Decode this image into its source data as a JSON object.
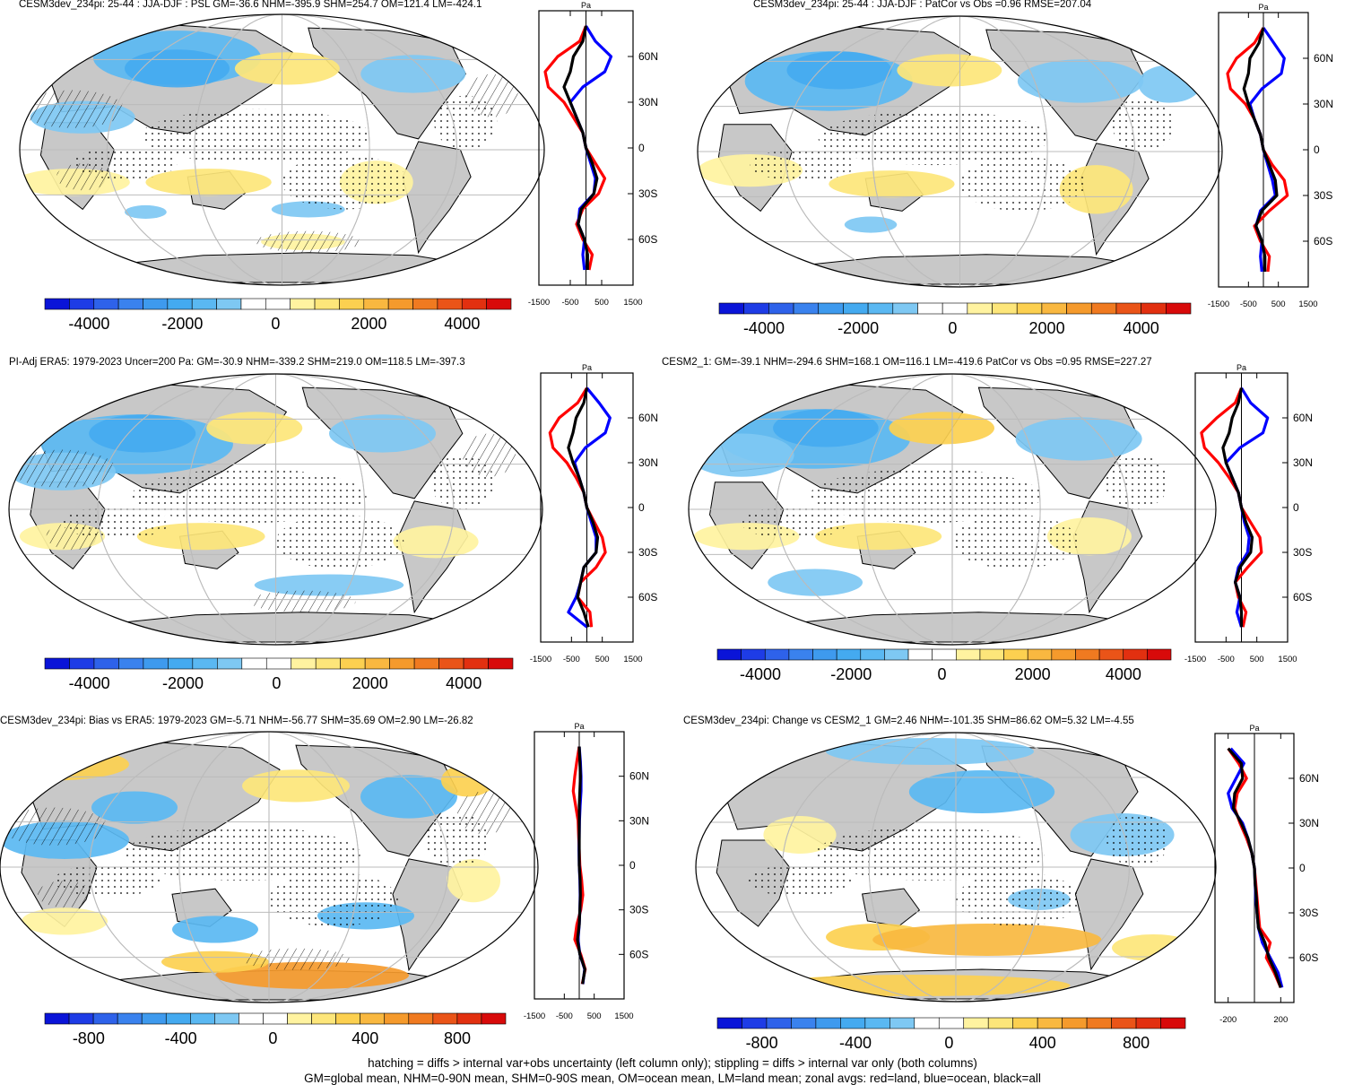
{
  "colors": {
    "land": "#c8c8c8",
    "blue_scale": [
      "#0a14d8",
      "#1e3ce6",
      "#2e62ea",
      "#3a82ee",
      "#3e9aee",
      "#44aaf0",
      "#5ab8f2",
      "#7ec8f3",
      "#ffffff"
    ],
    "warm_scale": [
      "#ffffff",
      "#fff3a0",
      "#fde67a",
      "#fcd050",
      "#f9b840",
      "#f59a2c",
      "#f07a20",
      "#ea5418",
      "#e23010",
      "#d80a0a"
    ],
    "land_line": "#ff0000",
    "ocean_line": "#0000ff",
    "all_line": "#000000"
  },
  "footer": {
    "line1": "hatching = diffs > internal var+obs uncertainty (left column only); stippling = diffs > internal var only (both columns)",
    "line2": "GM=global mean, NHM=0-90N mean, SHM=0-90S mean, OM=ocean mean, LM=land mean; zonal avgs: red=land, blue=ocean, black=all"
  },
  "chart_data": [
    {
      "id": "p1",
      "type": "map",
      "title": "CESM3dev_234pi: 25-44 : JJA-DJF : PSL GM=-36.6 NHM=-395.9 SHM=254.7 OM=121.4 LM=-424.1",
      "colorbar_ticks": [
        "-4000",
        "-2000",
        "0",
        "2000",
        "4000"
      ],
      "zonal": {
        "unit": "Pa",
        "xticks": [
          "-1500",
          "-500",
          "500",
          "1500"
        ],
        "xlim": [
          -1500,
          1500
        ],
        "lat_labels": [
          "60N",
          "30N",
          "0",
          "30S",
          "60S"
        ],
        "lat": [
          80,
          70,
          60,
          50,
          40,
          30,
          20,
          10,
          0,
          -10,
          -20,
          -30,
          -40,
          -50,
          -60,
          -70,
          -80
        ],
        "land": [
          0,
          -200,
          -900,
          -1300,
          -1200,
          -700,
          -400,
          -100,
          0,
          300,
          600,
          400,
          -100,
          -300,
          -100,
          200,
          100
        ],
        "ocean": [
          0,
          300,
          800,
          600,
          -100,
          -500,
          -300,
          -100,
          0,
          150,
          300,
          250,
          -200,
          -250,
          -50,
          -100,
          -50
        ],
        "all": [
          0,
          -100,
          -400,
          -500,
          -700,
          -500,
          -300,
          -100,
          0,
          200,
          350,
          250,
          -150,
          -250,
          -50,
          50,
          50
        ]
      }
    },
    {
      "id": "p2",
      "type": "map",
      "title": "CESM3dev_234pi: 25-44 : JJA-DJF : PatCor vs Obs =0.96 RMSE=207.04",
      "colorbar_ticks": [
        "-4000",
        "-2000",
        "0",
        "2000",
        "4000"
      ],
      "zonal": {
        "unit": "Pa",
        "xticks": [
          "-1500",
          "-500",
          "500",
          "1500"
        ],
        "xlim": [
          -1500,
          1500
        ],
        "lat_labels": [
          "60N",
          "30N",
          "0",
          "30S",
          "60S"
        ],
        "lat": [
          80,
          70,
          60,
          50,
          40,
          30,
          20,
          10,
          0,
          -10,
          -20,
          -30,
          -40,
          -50,
          -60,
          -70,
          -80
        ],
        "land": [
          0,
          -300,
          -900,
          -1200,
          -1100,
          -600,
          -300,
          -100,
          0,
          300,
          700,
          800,
          200,
          -300,
          -100,
          200,
          150
        ],
        "ocean": [
          0,
          350,
          700,
          600,
          -50,
          -450,
          -300,
          -100,
          0,
          150,
          300,
          400,
          -100,
          -250,
          -50,
          -100,
          -50
        ],
        "all": [
          0,
          -150,
          -450,
          -500,
          -650,
          -500,
          -300,
          -100,
          0,
          200,
          400,
          450,
          -50,
          -250,
          -50,
          50,
          50
        ]
      }
    },
    {
      "id": "p3",
      "type": "map",
      "title": "PI-Adj ERA5: 1979-2023 Uncer=200 Pa: GM=-30.9 NHM=-339.2 SHM=219.0 OM=118.5 LM=-397.3",
      "colorbar_ticks": [
        "-4000",
        "-2000",
        "0",
        "2000",
        "4000"
      ],
      "zonal": {
        "unit": "Pa",
        "xticks": [
          "-1500",
          "-500",
          "500",
          "1500"
        ],
        "xlim": [
          -1500,
          1500
        ],
        "lat_labels": [
          "60N",
          "30N",
          "0",
          "30S",
          "60S"
        ],
        "lat": [
          80,
          70,
          60,
          50,
          40,
          30,
          20,
          10,
          0,
          -10,
          -20,
          -30,
          -40,
          -50,
          -60,
          -70,
          -80
        ],
        "land": [
          0,
          -300,
          -900,
          -1200,
          -1100,
          -650,
          -350,
          -100,
          0,
          250,
          500,
          600,
          300,
          -200,
          -300,
          100,
          150
        ],
        "ocean": [
          0,
          400,
          750,
          600,
          -50,
          -400,
          -250,
          -100,
          0,
          150,
          300,
          300,
          -100,
          -200,
          -350,
          -600,
          0
        ],
        "all": [
          0,
          -100,
          -350,
          -450,
          -600,
          -450,
          -250,
          -100,
          0,
          200,
          350,
          300,
          -100,
          -200,
          -300,
          -100,
          50
        ]
      }
    },
    {
      "id": "p4",
      "type": "map",
      "title": "CESM2_1: GM=-39.1 NHM=-294.6 SHM=168.1 OM=116.1 LM=-419.6 PatCor vs Obs =0.95 RMSE=227.27",
      "colorbar_ticks": [
        "-4000",
        "-2000",
        "0",
        "2000",
        "4000"
      ],
      "zonal": {
        "unit": "Pa",
        "xticks": [
          "-1500",
          "-500",
          "500",
          "1500"
        ],
        "xlim": [
          -1500,
          1500
        ],
        "lat_labels": [
          "60N",
          "30N",
          "0",
          "30S",
          "60S"
        ],
        "lat": [
          80,
          70,
          60,
          50,
          40,
          30,
          20,
          10,
          0,
          -10,
          -20,
          -30,
          -40,
          -50,
          -60,
          -70,
          -80
        ],
        "land": [
          0,
          -200,
          -800,
          -1300,
          -1200,
          -750,
          -400,
          -100,
          0,
          300,
          600,
          650,
          200,
          -200,
          -100,
          150,
          50
        ],
        "ocean": [
          0,
          300,
          850,
          700,
          -50,
          -500,
          -300,
          -100,
          0,
          100,
          250,
          200,
          -100,
          -200,
          -50,
          -150,
          0
        ],
        "all": [
          0,
          -100,
          -300,
          -400,
          -600,
          -500,
          -300,
          -100,
          0,
          150,
          350,
          300,
          -50,
          -200,
          -50,
          0,
          0
        ]
      }
    },
    {
      "id": "p5",
      "type": "map",
      "title": "CESM3dev_234pi: Bias vs ERA5: 1979-2023 GM=-5.71 NHM=-56.77 SHM=35.69 OM=2.90 LM=-26.82",
      "colorbar_ticks": [
        "-800",
        "-400",
        "0",
        "400",
        "800"
      ],
      "zonal": {
        "unit": "Pa",
        "xticks": [
          "-1500",
          "-500",
          "500",
          "1500"
        ],
        "xlim": [
          -1500,
          1500
        ],
        "lat_labels": [
          "60N",
          "30N",
          "0",
          "30S",
          "60S"
        ],
        "lat": [
          80,
          70,
          60,
          50,
          40,
          30,
          20,
          10,
          0,
          -10,
          -20,
          -30,
          -40,
          -50,
          -60,
          -70,
          -80
        ],
        "land": [
          0,
          -80,
          -150,
          -200,
          -120,
          -40,
          -20,
          0,
          20,
          80,
          120,
          50,
          -80,
          -150,
          50,
          200,
          100
        ],
        "ocean": [
          0,
          40,
          60,
          60,
          30,
          10,
          0,
          -10,
          0,
          20,
          30,
          20,
          0,
          -40,
          20,
          180,
          120
        ],
        "all": [
          0,
          20,
          40,
          20,
          0,
          0,
          0,
          0,
          0,
          30,
          40,
          20,
          0,
          -60,
          20,
          190,
          110
        ]
      }
    },
    {
      "id": "p6",
      "type": "map",
      "title": "CESM3dev_234pi: Change vs CESM2_1 GM=2.46 NHM=-101.35 SHM=86.62 OM=5.32 LM=-4.55",
      "colorbar_ticks": [
        "-800",
        "-400",
        "0",
        "400",
        "800"
      ],
      "zonal": {
        "unit": "Pa",
        "xticks": [
          "-200",
          "200"
        ],
        "xlim": [
          -300,
          300
        ],
        "lat_labels": [
          "60N",
          "30N",
          "0",
          "30S",
          "60S"
        ],
        "lat": [
          80,
          70,
          60,
          50,
          40,
          30,
          20,
          10,
          0,
          -10,
          -20,
          -30,
          -40,
          -50,
          -60,
          -70,
          -80
        ],
        "land": [
          -200,
          -120,
          -60,
          -130,
          -150,
          -110,
          -60,
          -20,
          0,
          10,
          20,
          30,
          40,
          120,
          90,
          150,
          200
        ],
        "ocean": [
          -180,
          -80,
          -140,
          -200,
          -170,
          -90,
          -50,
          -20,
          0,
          5,
          10,
          20,
          30,
          60,
          120,
          180,
          210
        ],
        "all": [
          -200,
          -100,
          -90,
          -150,
          -160,
          -100,
          -50,
          -20,
          0,
          5,
          15,
          20,
          30,
          80,
          110,
          160,
          200
        ]
      }
    }
  ]
}
